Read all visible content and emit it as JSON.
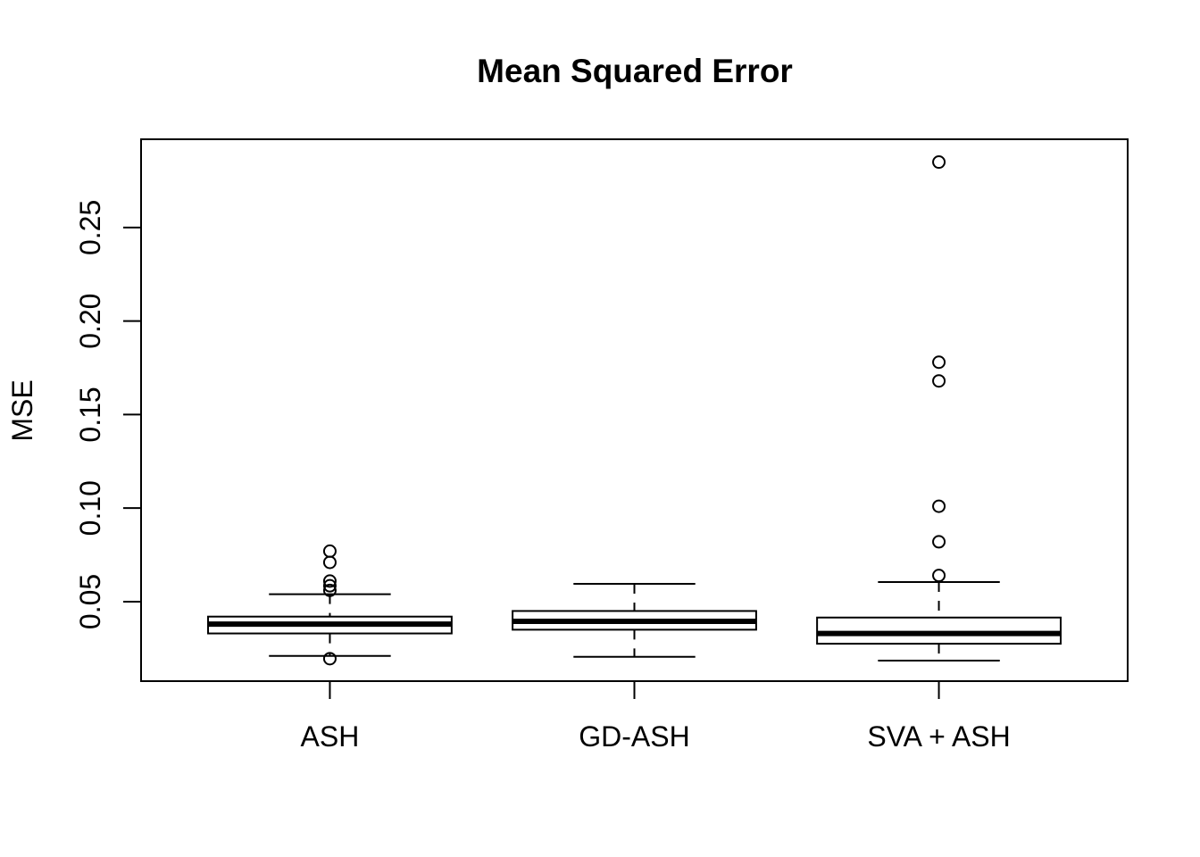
{
  "chart_data": {
    "type": "boxplot",
    "title": "Mean Squared Error",
    "xlabel": "",
    "ylabel": "MSE",
    "categories": [
      "ASH",
      "GD-ASH",
      "SVA + ASH"
    ],
    "ylim": [
      0.0075,
      0.2972
    ],
    "yticks": [
      0.05,
      0.1,
      0.15,
      0.2,
      0.25
    ],
    "ytick_labels": [
      "0.05",
      "0.10",
      "0.15",
      "0.20",
      "0.25"
    ],
    "grid": false,
    "legend": "none",
    "orientation": "vertical",
    "series": [
      {
        "name": "ASH",
        "whisker_low": 0.021,
        "q1": 0.033,
        "median": 0.038,
        "q3": 0.042,
        "whisker_high": 0.054,
        "outliers": [
          0.077,
          0.071,
          0.061,
          0.0585,
          0.056,
          0.0195
        ]
      },
      {
        "name": "GD-ASH",
        "whisker_low": 0.0205,
        "q1": 0.035,
        "median": 0.0395,
        "q3": 0.045,
        "whisker_high": 0.0595,
        "outliers": []
      },
      {
        "name": "SVA + ASH",
        "whisker_low": 0.0185,
        "q1": 0.0275,
        "median": 0.033,
        "q3": 0.0415,
        "whisker_high": 0.0605,
        "outliers": [
          0.285,
          0.178,
          0.168,
          0.101,
          0.082,
          0.064
        ]
      }
    ],
    "colors": {
      "stroke": "#000000",
      "background": "#ffffff",
      "box_fill": "#ffffff"
    },
    "style": {
      "whisker_linetype": "dashed",
      "outlier_marker": "open-circle",
      "median_line": "thick"
    }
  }
}
